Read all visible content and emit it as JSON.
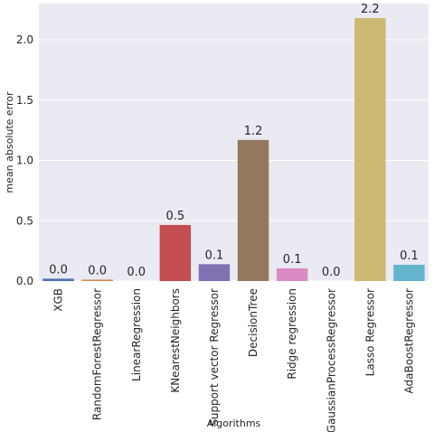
{
  "chart_data": {
    "type": "bar",
    "title": "",
    "xlabel": "Algorithms",
    "ylabel": "mean absolute error",
    "categories": [
      "XGB",
      "RandomForestRegressor",
      "LinearRegression",
      "KNearestNeighbors",
      "Support vector Regressor",
      "DecisionTree",
      "Ridge regression",
      "GaussianProcessRegressor",
      "Lasso Regressor",
      "AdaBoostRegressor"
    ],
    "values": [
      0.02,
      0.012,
      0.0,
      0.465,
      0.14,
      1.17,
      0.105,
      0.0,
      2.18,
      0.135
    ],
    "data_labels": [
      "0.0",
      "0.0",
      "0.0",
      "0.5",
      "0.1",
      "1.2",
      "0.1",
      "0.0",
      "2.2",
      "0.1"
    ],
    "ylim": [
      0,
      2.3
    ],
    "yticks": [
      0.0,
      0.5,
      1.0,
      1.5,
      2.0
    ],
    "ytick_labels": [
      "0.0",
      "0.5",
      "1.0",
      "1.5",
      "2.0"
    ],
    "grid": true,
    "colors": [
      "#4c72b0",
      "#dd8452",
      "#55a868",
      "#c44e52",
      "#8172b3",
      "#937860",
      "#da8bc3",
      "#8c8c8c",
      "#ccb974",
      "#64b5cd"
    ],
    "plot_background": "#eaeaf2",
    "grid_color": "#ffffff"
  }
}
